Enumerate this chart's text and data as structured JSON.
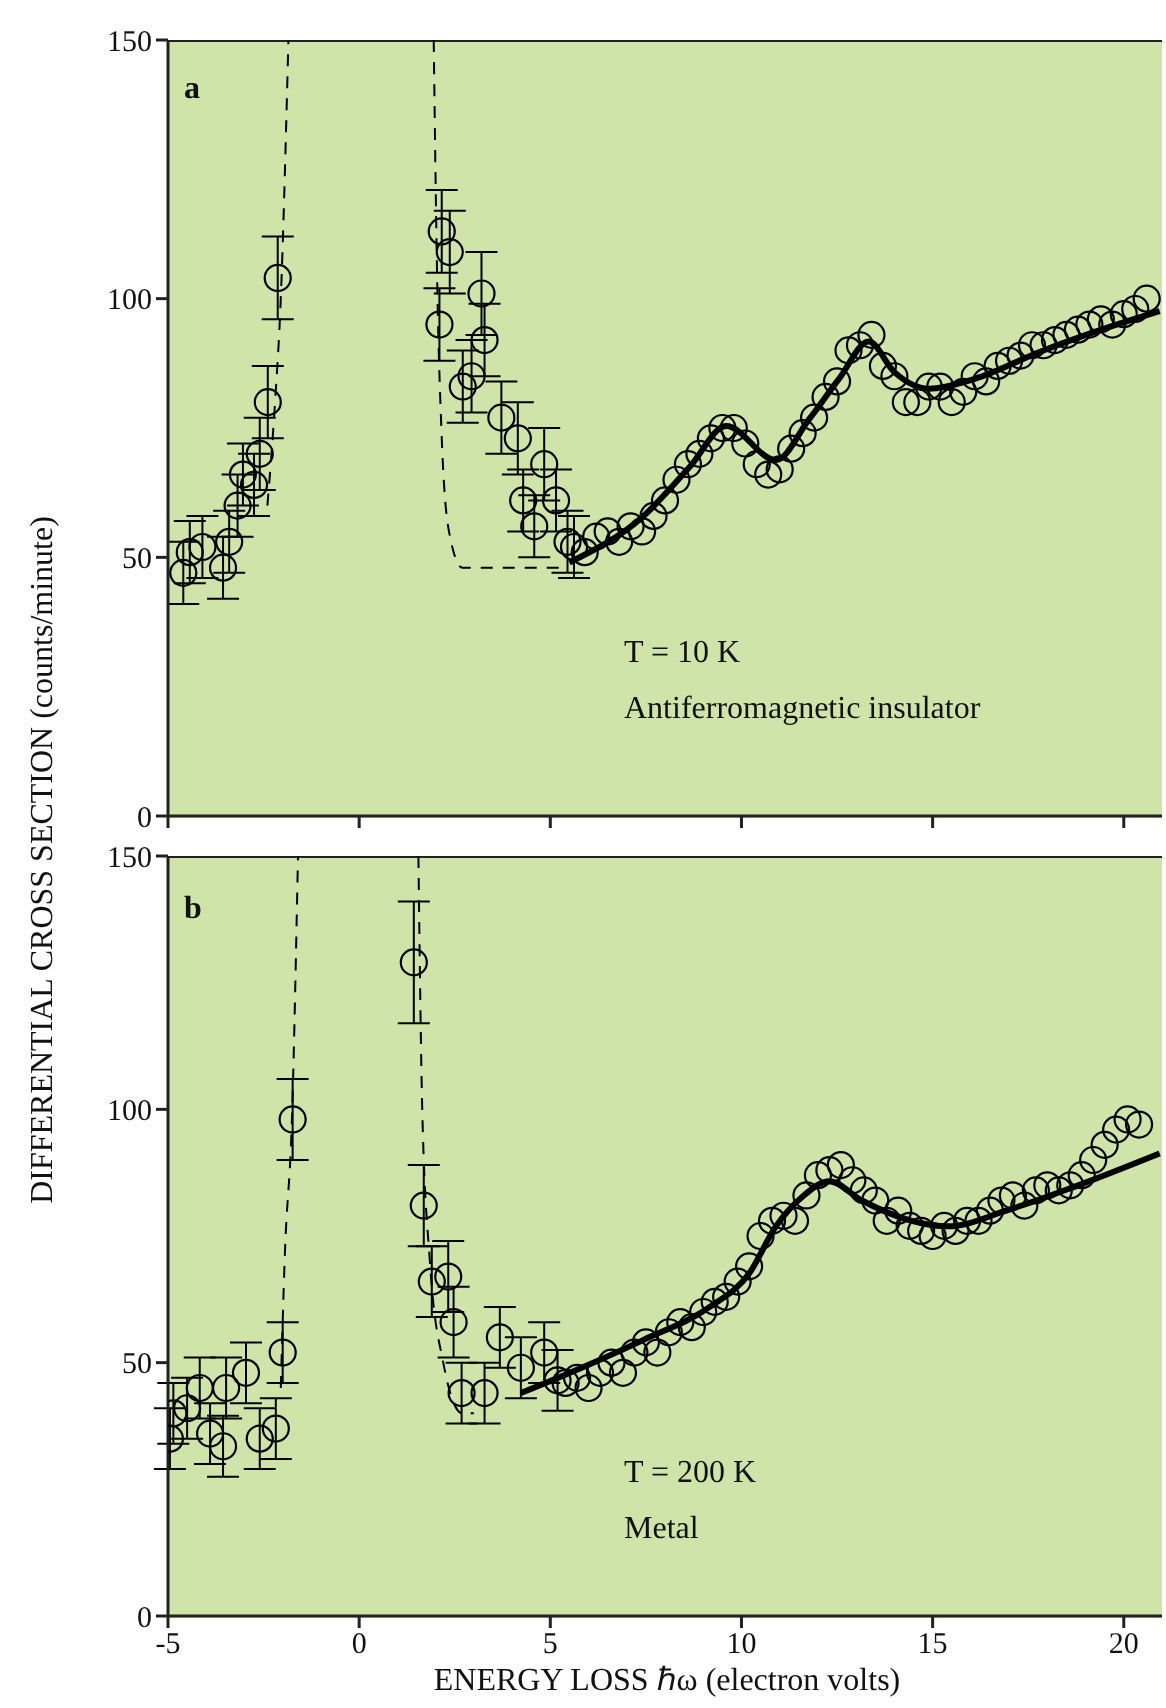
{
  "chart_data": [
    {
      "type": "scatter",
      "ylabel": "DIFFERENTIAL CROSS SECTION (counts/minute)",
      "annotations": [
        "a",
        "T = 10 K",
        "Antiferromagnetic insulator"
      ],
      "xlim": [
        -5,
        21
      ],
      "xticks": [
        -5,
        0,
        5,
        10,
        15,
        20
      ],
      "ylim": [
        0,
        150
      ],
      "yticks": [
        0,
        50,
        100,
        150
      ],
      "tick_labels": "y",
      "series": [
        {
          "marker": "circle",
          "color": "#000000",
          "x": [
            -4.6,
            -4.43,
            -4.1,
            -3.56,
            -3.4,
            -3.18,
            -3.04,
            -2.75,
            -2.6,
            -2.39,
            -2.13,
            2.1,
            2.16,
            2.37,
            2.71,
            2.94,
            3.2,
            3.28,
            3.72,
            4.15,
            4.29,
            4.58,
            4.84,
            5.15,
            5.45,
            5.62,
            5.9,
            6.2,
            6.5,
            6.8,
            7.1,
            7.4,
            7.7,
            8.0,
            8.3,
            8.6,
            8.9,
            9.2,
            9.5,
            9.8,
            10.1,
            10.4,
            10.7,
            11.0,
            11.3,
            11.6,
            11.9,
            12.2,
            12.5,
            12.8,
            13.1,
            13.4,
            13.7,
            14.0,
            14.3,
            14.6,
            14.9,
            15.2,
            15.5,
            15.8,
            16.1,
            16.4,
            16.7,
            17.0,
            17.3,
            17.6,
            17.9,
            18.2,
            18.5,
            18.8,
            19.1,
            19.4,
            19.7,
            20.0,
            20.3,
            20.6
          ],
          "values": [
            47,
            51,
            52,
            48,
            53,
            60,
            66,
            64,
            70,
            80,
            104,
            95,
            113,
            109,
            83,
            85,
            101,
            92,
            77,
            73,
            61,
            56,
            68,
            61,
            53,
            52,
            51,
            54,
            55,
            53,
            56,
            55,
            58,
            61,
            65,
            68,
            70,
            73,
            75,
            75,
            72,
            68,
            66,
            67,
            71,
            74,
            77,
            81,
            84,
            90,
            91,
            93,
            87,
            85,
            80,
            80,
            83,
            83,
            80,
            82,
            85,
            84,
            87,
            88,
            89,
            91,
            91,
            92,
            93,
            94,
            95,
            96,
            95,
            97,
            98,
            100
          ],
          "errors": [
            6,
            6,
            6,
            6,
            6,
            6,
            6,
            6,
            7,
            7,
            8,
            7,
            8,
            8,
            7,
            7,
            8,
            7,
            7,
            7,
            6,
            6,
            7,
            6,
            6,
            6,
            null,
            null,
            null,
            null,
            null,
            null,
            null,
            null,
            null,
            null,
            null,
            null,
            null,
            null,
            null,
            null,
            null,
            null,
            null,
            null,
            null,
            null,
            null,
            null,
            null,
            null,
            null,
            null,
            null,
            null,
            null,
            null,
            null,
            null,
            null,
            null,
            null,
            null,
            null,
            null,
            null,
            null,
            null,
            null,
            null,
            null,
            null,
            null,
            null,
            null
          ]
        },
        {
          "type": "line",
          "color": "#000000",
          "line_style": "dashed",
          "x": [
            -2.4,
            -2.2,
            -2.05,
            -1.85
          ],
          "values": [
            60,
            80,
            100,
            150
          ]
        },
        {
          "type": "line",
          "color": "#000000",
          "line_style": "dashed",
          "x": [
            1.95,
            2.05,
            2.15,
            2.35,
            2.7,
            5.3
          ],
          "values": [
            150,
            100,
            75,
            55,
            48,
            48
          ]
        },
        {
          "type": "line",
          "color": "#000000",
          "line_style": "solid",
          "x": [
            5.5,
            7.44,
            8.65,
            9.6,
            10.9,
            11.77,
            12.55,
            13.33,
            14.0,
            14.9,
            16.1,
            17.83,
            19.57,
            20.94
          ],
          "values": [
            49,
            58,
            67.5,
            75.4,
            68.8,
            76.7,
            84.5,
            91.7,
            85.8,
            82.6,
            84.5,
            89.8,
            94.4,
            97.6
          ]
        }
      ]
    },
    {
      "type": "scatter",
      "xlabel": "ENERGY LOSS ℏω (electron volts)",
      "annotations": [
        "b",
        "T = 200 K",
        "Metal"
      ],
      "xlim": [
        -5,
        21
      ],
      "xticks": [
        -5,
        0,
        5,
        10,
        15,
        20
      ],
      "ylim": [
        0,
        150
      ],
      "yticks": [
        0,
        50,
        100,
        150
      ],
      "series": [
        {
          "marker": "circle",
          "color": "#000000",
          "x": [
            -4.95,
            -4.86,
            -4.5,
            -4.17,
            -3.9,
            -3.56,
            -3.48,
            -2.96,
            -2.6,
            -2.18,
            -2.0,
            -1.74,
            1.43,
            1.69,
            1.9,
            2.33,
            2.47,
            2.68,
            3.28,
            3.68,
            4.23,
            4.84,
            5.19,
            5.4,
            5.7,
            6.0,
            6.3,
            6.6,
            6.9,
            7.2,
            7.5,
            7.8,
            8.1,
            8.4,
            8.7,
            9.0,
            9.3,
            9.6,
            9.9,
            10.2,
            10.5,
            10.8,
            11.1,
            11.4,
            11.7,
            12.0,
            12.3,
            12.6,
            12.9,
            13.2,
            13.5,
            13.8,
            14.1,
            14.4,
            14.7,
            15.0,
            15.3,
            15.6,
            15.9,
            16.2,
            16.5,
            16.8,
            17.1,
            17.4,
            17.7,
            18.0,
            18.3,
            18.6,
            18.9,
            19.2,
            19.5,
            19.8,
            20.1,
            20.4
          ],
          "values": [
            35,
            40,
            41,
            45,
            36,
            33.5,
            45,
            48,
            35,
            37,
            52,
            98,
            129,
            81,
            66,
            67,
            58,
            44,
            44,
            55,
            49,
            52,
            46.5,
            46,
            47,
            45,
            48,
            50,
            48,
            52,
            54,
            52,
            56,
            58,
            57,
            60,
            62,
            63,
            66,
            69,
            75,
            78,
            79,
            78,
            83,
            87,
            88,
            89,
            86,
            84,
            82,
            78,
            80,
            77,
            76,
            75,
            77,
            76,
            78,
            78,
            80,
            82,
            83,
            81,
            84,
            85,
            84,
            85,
            87,
            90,
            93,
            96,
            98,
            97
          ],
          "errors": [
            6,
            6,
            6,
            6,
            6,
            6,
            6,
            6,
            6,
            6,
            6,
            8,
            12,
            8,
            7,
            7,
            7,
            6,
            6,
            6,
            6,
            6,
            6,
            null,
            null,
            null,
            null,
            null,
            null,
            null,
            null,
            null,
            null,
            null,
            null,
            null,
            null,
            null,
            null,
            null,
            null,
            null,
            null,
            null,
            null,
            null,
            null,
            null,
            null,
            null,
            null,
            null,
            null,
            null,
            null,
            null,
            null,
            null,
            null,
            null,
            null,
            null,
            null,
            null,
            null,
            null,
            null,
            null,
            null,
            null,
            null,
            null,
            null,
            null
          ]
        },
        {
          "type": "line",
          "color": "#000000",
          "line_style": "dashed",
          "x": [
            -2.05,
            -1.95,
            -1.75,
            -1.6
          ],
          "values": [
            45,
            70,
            100,
            150
          ]
        },
        {
          "type": "line",
          "color": "#000000",
          "line_style": "dashed",
          "x": [
            1.55,
            1.65,
            1.85,
            2.2,
            2.7,
            3.0
          ],
          "values": [
            150,
            100,
            70,
            50,
            40,
            40
          ]
        },
        {
          "type": "line",
          "color": "#000000",
          "line_style": "solid",
          "x": [
            4.23,
            5.7,
            7.44,
            9.17,
            10.2,
            10.9,
            11.6,
            12.3,
            13.15,
            14.36,
            15.4,
            16.96,
            18.7,
            20.94
          ],
          "values": [
            44,
            48.6,
            54.5,
            61,
            67.6,
            76.9,
            82.8,
            85.8,
            82,
            78.2,
            76.9,
            80.1,
            84.7,
            91.3
          ]
        }
      ]
    }
  ]
}
